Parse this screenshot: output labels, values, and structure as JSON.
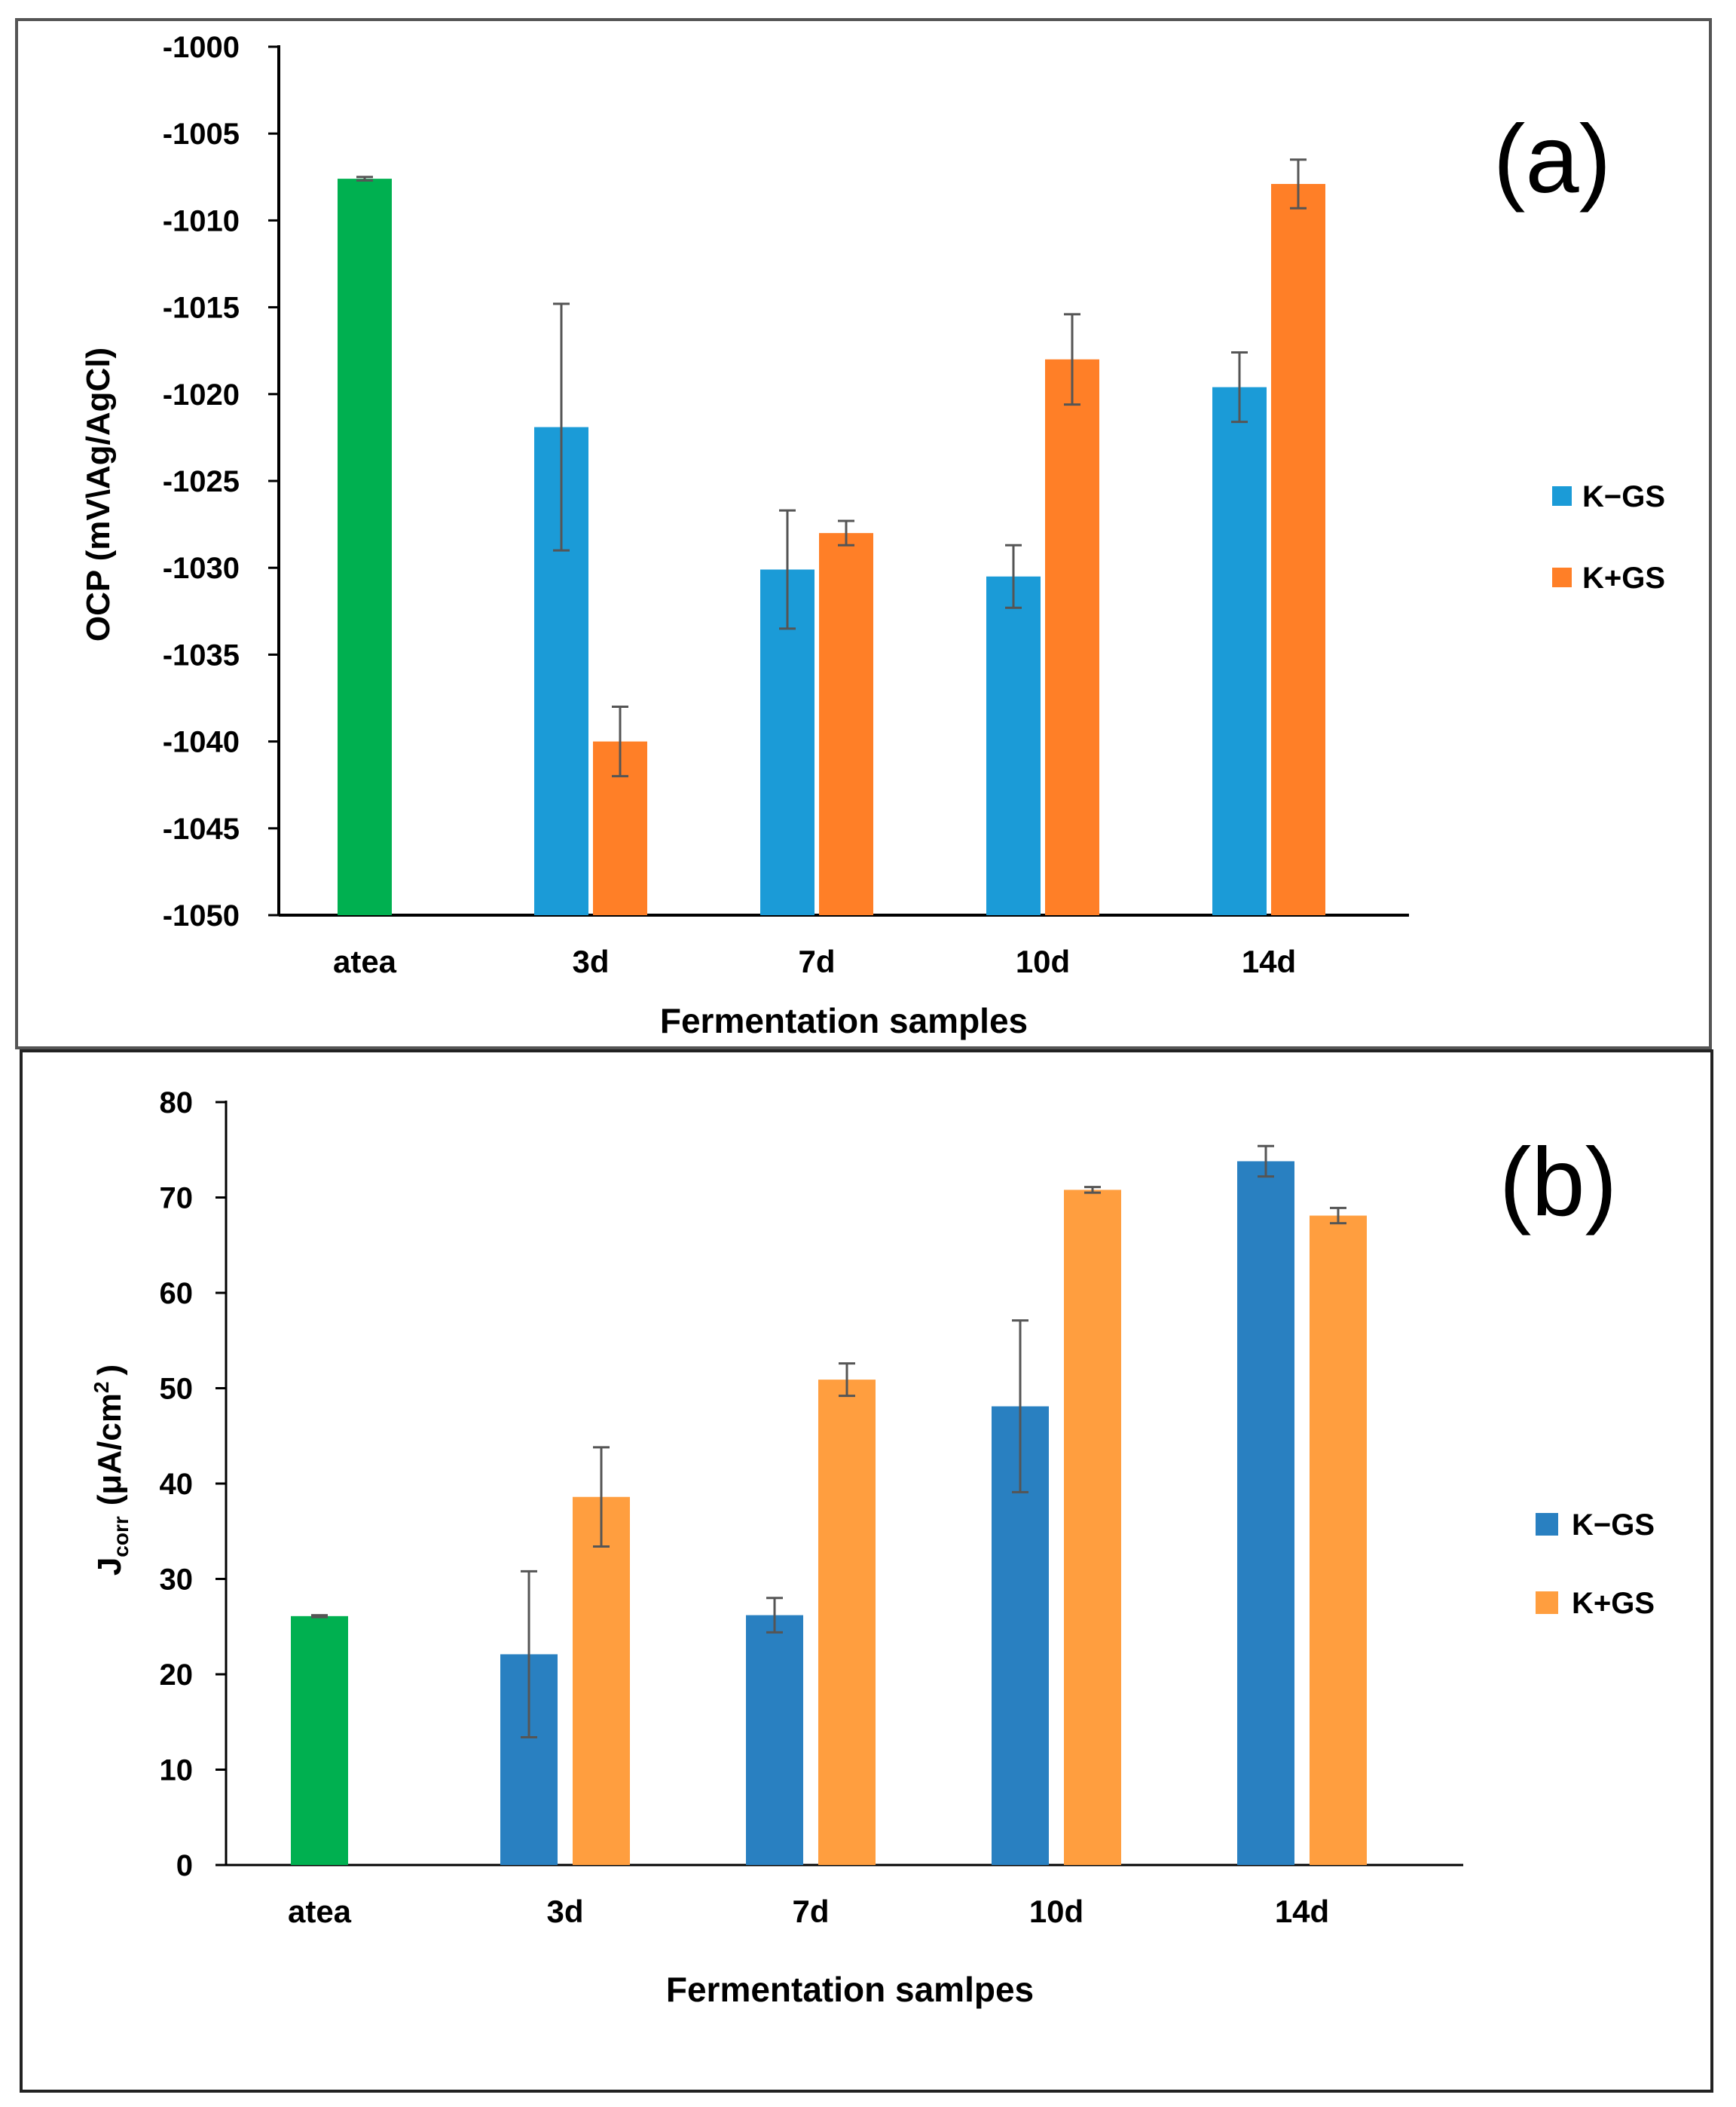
{
  "chart_data": [
    {
      "type": "bar",
      "panel_label": "(a)",
      "categories": [
        "atea",
        "3d",
        "7d",
        "10d",
        "14d"
      ],
      "xlabel": "Fermentation samples",
      "ylabel": "OCP (mV\\Ag/AgCl)",
      "ylim": [
        -1050,
        -1000
      ],
      "yticks": [
        -1000,
        -1005,
        -1010,
        -1015,
        -1020,
        -1025,
        -1030,
        -1035,
        -1040,
        -1045,
        -1050
      ],
      "ytick_labels": [
        "-1000",
        "-1005",
        "-1010",
        "-1015",
        "-1020",
        "-1025",
        "-1030",
        "-1035",
        "-1040",
        "-1045",
        "-1050"
      ],
      "baseline": -1050,
      "legend": {
        "position": "right"
      },
      "grid": false,
      "series": [
        {
          "values": [
            -1007.6,
            null,
            null,
            null,
            null
          ],
          "errors": [
            0.1,
            null,
            null,
            null,
            null
          ],
          "color": "#00b050"
        },
        {
          "name": "K−GS",
          "values": [
            null,
            -1021.9,
            -1030.1,
            -1030.5,
            -1019.6
          ],
          "errors": [
            null,
            7.1,
            3.4,
            1.8,
            2.0
          ],
          "color": "#1b9bd7"
        },
        {
          "name": "K+GS",
          "values": [
            null,
            -1040.0,
            -1028.0,
            -1018.0,
            -1007.9
          ],
          "errors": [
            null,
            2.0,
            0.7,
            2.6,
            1.4
          ],
          "color": "#ff7f27"
        }
      ]
    },
    {
      "type": "bar",
      "panel_label": "(b)",
      "categories": [
        "atea",
        "3d",
        "7d",
        "10d",
        "14d"
      ],
      "xlabel": "Fermentation samlpes",
      "ylabel": {
        "main": "J",
        "sub": "corr",
        "unit": "(μA/cm",
        "sup": "2",
        "close": ")"
      },
      "ylim": [
        0,
        80
      ],
      "yticks": [
        0,
        10,
        20,
        30,
        40,
        50,
        60,
        70,
        80
      ],
      "ytick_labels": [
        "0",
        "10",
        "20",
        "30",
        "40",
        "50",
        "60",
        "70",
        "80"
      ],
      "baseline": 0,
      "legend": {
        "position": "right"
      },
      "grid": false,
      "series": [
        {
          "values": [
            26.1,
            null,
            null,
            null,
            null
          ],
          "errors": [
            0.1,
            null,
            null,
            null,
            null
          ],
          "color": "#00b050"
        },
        {
          "name": "K−GS",
          "values": [
            null,
            22.1,
            26.2,
            48.1,
            73.8
          ],
          "errors": [
            null,
            8.7,
            1.8,
            9.0,
            1.6
          ],
          "color": "#2980c1"
        },
        {
          "name": "K+GS",
          "values": [
            null,
            38.6,
            50.9,
            70.8,
            68.1
          ],
          "errors": [
            null,
            5.2,
            1.7,
            0.3,
            0.8
          ],
          "color": "#ff9e3f"
        }
      ]
    }
  ]
}
